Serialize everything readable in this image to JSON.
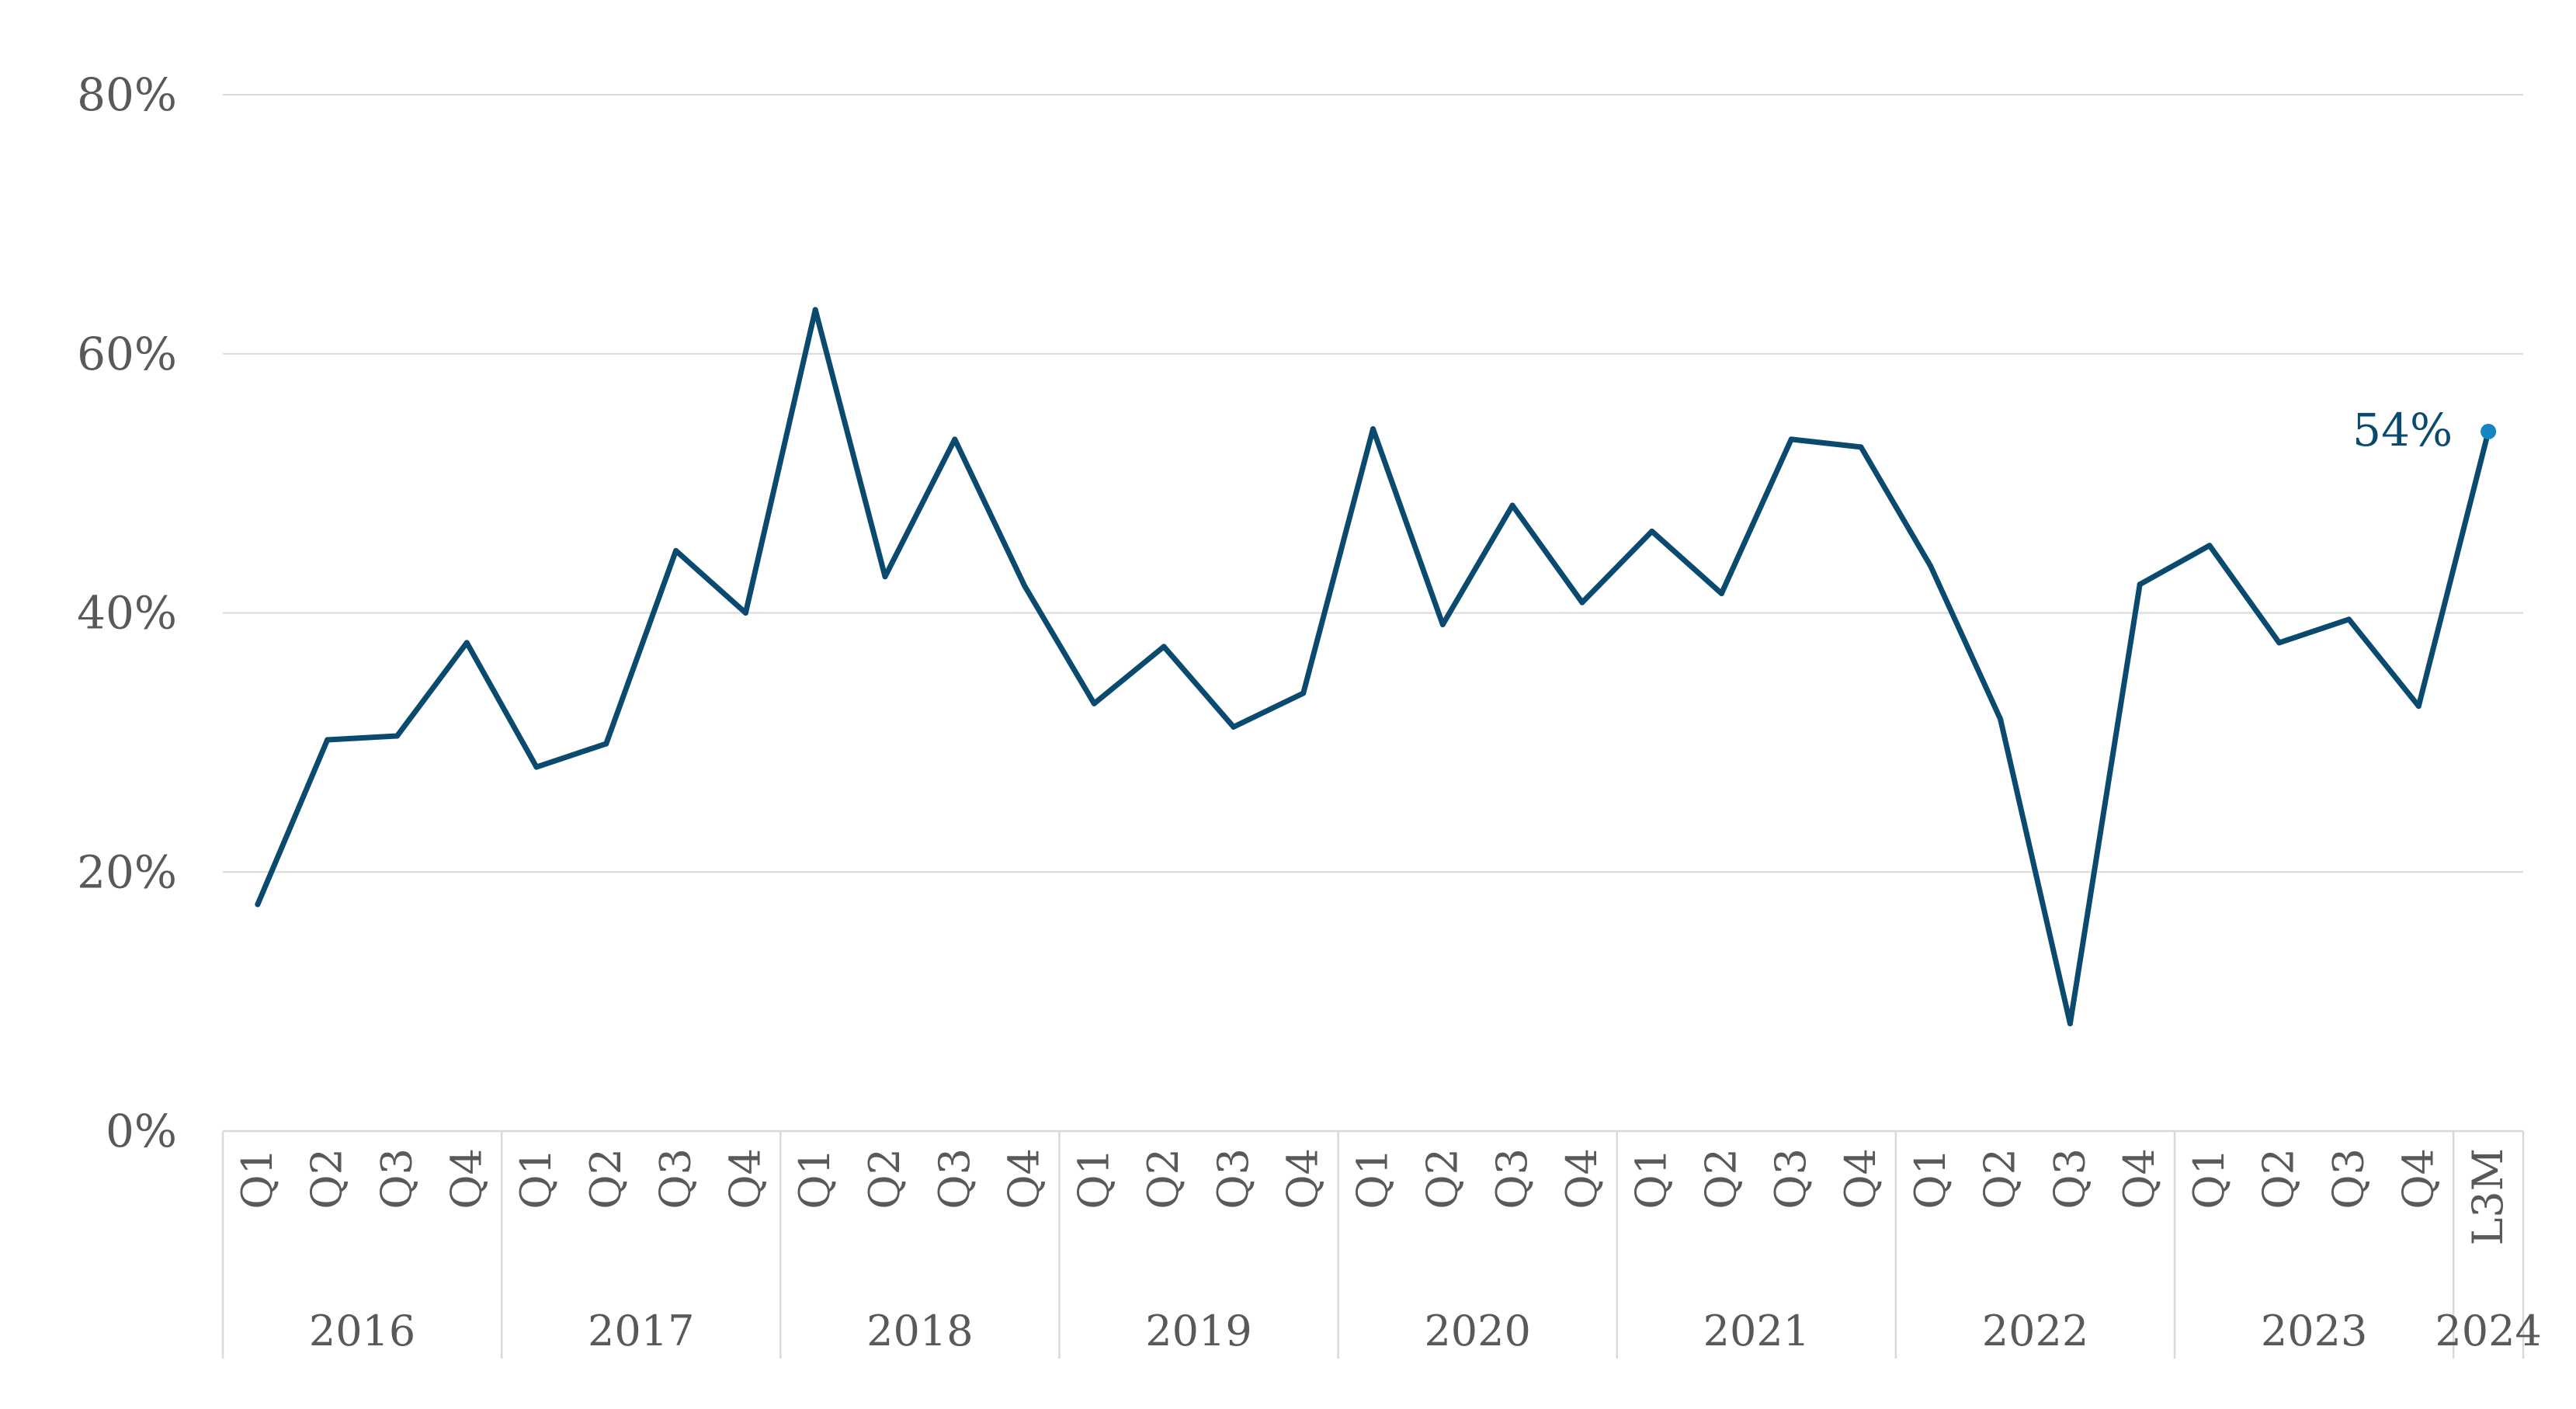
{
  "chart_data": {
    "type": "line",
    "title": "",
    "xlabel": "",
    "ylabel": "",
    "ylim": [
      0,
      80
    ],
    "y_ticks": [
      "0%",
      "20%",
      "40%",
      "60%",
      "80%"
    ],
    "grid": true,
    "legend": "none",
    "groups": [
      {
        "year": "2016",
        "quarters": [
          "Q1",
          "Q2",
          "Q3",
          "Q4"
        ]
      },
      {
        "year": "2017",
        "quarters": [
          "Q1",
          "Q2",
          "Q3",
          "Q4"
        ]
      },
      {
        "year": "2018",
        "quarters": [
          "Q1",
          "Q2",
          "Q3",
          "Q4"
        ]
      },
      {
        "year": "2019",
        "quarters": [
          "Q1",
          "Q2",
          "Q3",
          "Q4"
        ]
      },
      {
        "year": "2020",
        "quarters": [
          "Q1",
          "Q2",
          "Q3",
          "Q4"
        ]
      },
      {
        "year": "2021",
        "quarters": [
          "Q1",
          "Q2",
          "Q3",
          "Q4"
        ]
      },
      {
        "year": "2022",
        "quarters": [
          "Q1",
          "Q2",
          "Q3",
          "Q4"
        ]
      },
      {
        "year": "2023",
        "quarters": [
          "Q1",
          "Q2",
          "Q3",
          "Q4"
        ]
      },
      {
        "year": "2024",
        "quarters": [
          "L3M"
        ]
      }
    ],
    "series": [
      {
        "color": "#0b4a6f",
        "values": [
          17.5,
          30.2,
          30.5,
          37.7,
          28.1,
          29.9,
          44.8,
          40.0,
          63.4,
          42.8,
          53.4,
          42.1,
          33.0,
          37.4,
          31.2,
          33.8,
          54.2,
          39.1,
          48.3,
          40.8,
          46.3,
          41.5,
          53.4,
          52.8,
          43.6,
          31.8,
          8.3,
          42.2,
          45.2,
          37.7,
          39.5,
          32.8,
          54.0
        ]
      }
    ],
    "last_point": {
      "label": "54%",
      "color": "#1386c3"
    }
  }
}
